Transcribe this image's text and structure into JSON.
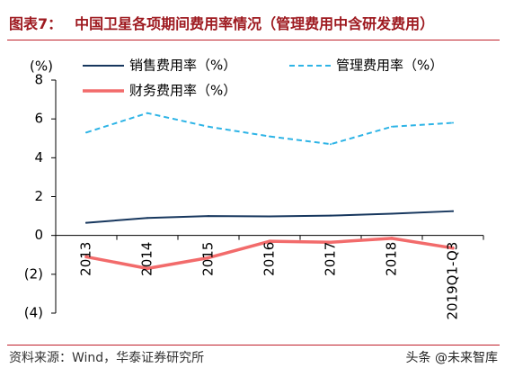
{
  "title": {
    "label": "图表7：",
    "text": "中国卫星各项期间费用率情况（管理费用中含研发费用）"
  },
  "chart_data": {
    "type": "line",
    "categories": [
      "2013",
      "2014",
      "2015",
      "2016",
      "2017",
      "2018",
      "2019Q1-Q3"
    ],
    "series": [
      {
        "name": "销售费用率（%）",
        "values": [
          0.65,
          0.9,
          1.0,
          0.98,
          1.02,
          1.12,
          1.25
        ],
        "color": "#17375E",
        "dashed": false
      },
      {
        "name": "管理费用率（%）",
        "values": [
          5.3,
          6.3,
          5.6,
          5.1,
          4.7,
          5.6,
          5.8
        ],
        "color": "#2EB4E6",
        "dashed": true
      },
      {
        "name": "财务费用率（%）",
        "values": [
          -1.1,
          -1.7,
          -1.15,
          -0.3,
          -0.35,
          -0.15,
          -0.65
        ],
        "color": "#F26B6B",
        "dashed": false
      }
    ],
    "ylabel": "(%)",
    "ylim": [
      -4,
      8
    ],
    "yticks": [
      8,
      6,
      4,
      2,
      0,
      -2,
      -4
    ],
    "ytick_labels": [
      "8",
      "6",
      "4",
      "2",
      "0",
      "(2)",
      "(4)"
    ],
    "grid": false,
    "legend": "top"
  },
  "footer": {
    "source": "资料来源：Wind，华泰证券研究所",
    "watermark": "头条 @未来智库"
  },
  "colors": {
    "accent": "#9E1A20",
    "rule": "#C0202A"
  }
}
